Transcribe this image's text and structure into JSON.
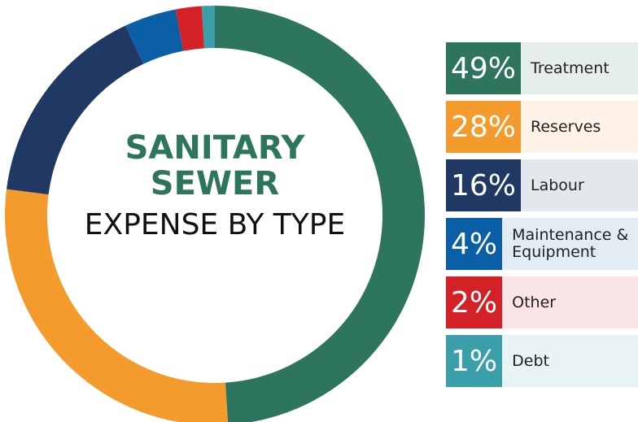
{
  "chart_data": {
    "type": "pie",
    "title": "SANITARY SEWER",
    "subtitle": "EXPENSE BY TYPE",
    "categories": [
      "Treatment",
      "Reserves",
      "Labour",
      "Maintenance & Equipment",
      "Other",
      "Debt"
    ],
    "values": [
      49,
      28,
      16,
      4,
      2,
      1
    ],
    "value_labels": [
      "49%",
      "28%",
      "16%",
      "4%",
      "2%",
      "1%"
    ],
    "colors": [
      "#2e7560",
      "#f49b2d",
      "#1f3864",
      "#0a5fa6",
      "#d42027",
      "#3a9fa8"
    ]
  }
}
